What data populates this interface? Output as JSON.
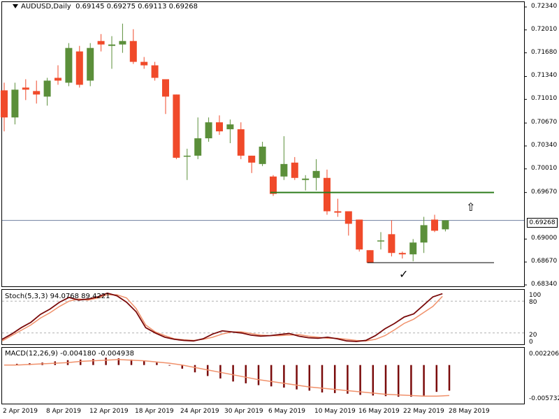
{
  "header": {
    "symbol": "AUDUSD,Daily",
    "ohlc": "0.69145 0.69275 0.69113 0.69268"
  },
  "stoch_label": "Stoch(5,3,3) 94.0768 89.4221",
  "macd_label": "MACD(12,26,9) -0.004180 -0.004938",
  "price_axis_ticks": [
    "0.72340",
    "0.72010",
    "0.71680",
    "0.71340",
    "0.71010",
    "0.70670",
    "0.70340",
    "0.70010",
    "0.69670",
    "0.69268",
    "0.69000",
    "0.68670",
    "0.68340"
  ],
  "current_price_label": "0.69268",
  "stoch_axis_ticks": [
    "100",
    "80",
    "20",
    "0"
  ],
  "macd_axis_ticks": [
    "0.002206",
    "-0.005732"
  ],
  "date_ticks": [
    "2 Apr 2019",
    "8 Apr 2019",
    "12 Apr 2019",
    "18 Apr 2019",
    "24 Apr 2019",
    "30 Apr 2019",
    "6 May 2019",
    "10 May 2019",
    "16 May 2019",
    "22 May 2019",
    "28 May 2019"
  ],
  "annotations": {
    "up_arrow": "⇧",
    "checkmark": "✓"
  },
  "colors": {
    "bull": "#5b8f3a",
    "bear": "#f04a2a",
    "stoch_main": "#7a0a0a",
    "stoch_signal": "#f0906a",
    "macd_hist": "#7a0a0a",
    "macd_signal": "#f0906a",
    "resistance": "#2e7d1e",
    "support": "#000000",
    "current_price_line": "#6f7f9f"
  },
  "chart_data": {
    "type": "candlestick",
    "ylim": [
      0.6834,
      0.724
    ],
    "candles": [
      {
        "o": 0.7114,
        "h": 0.7125,
        "l": 0.7055,
        "c": 0.7075
      },
      {
        "o": 0.7075,
        "h": 0.7125,
        "l": 0.7065,
        "c": 0.7115
      },
      {
        "o": 0.7118,
        "h": 0.713,
        "l": 0.71,
        "c": 0.7115
      },
      {
        "o": 0.7113,
        "h": 0.7128,
        "l": 0.7095,
        "c": 0.7108
      },
      {
        "o": 0.7105,
        "h": 0.7132,
        "l": 0.7092,
        "c": 0.7128
      },
      {
        "o": 0.7132,
        "h": 0.715,
        "l": 0.7122,
        "c": 0.7128
      },
      {
        "o": 0.7125,
        "h": 0.7182,
        "l": 0.712,
        "c": 0.7175
      },
      {
        "o": 0.717,
        "h": 0.7178,
        "l": 0.7118,
        "c": 0.7122
      },
      {
        "o": 0.7128,
        "h": 0.7182,
        "l": 0.712,
        "c": 0.7175
      },
      {
        "o": 0.7185,
        "h": 0.7195,
        "l": 0.717,
        "c": 0.718
      },
      {
        "o": 0.7178,
        "h": 0.7192,
        "l": 0.7145,
        "c": 0.718
      },
      {
        "o": 0.718,
        "h": 0.721,
        "l": 0.7168,
        "c": 0.7185
      },
      {
        "o": 0.7185,
        "h": 0.7202,
        "l": 0.7152,
        "c": 0.7155
      },
      {
        "o": 0.7155,
        "h": 0.7162,
        "l": 0.7145,
        "c": 0.715
      },
      {
        "o": 0.715,
        "h": 0.7155,
        "l": 0.7128,
        "c": 0.7132
      },
      {
        "o": 0.713,
        "h": 0.713,
        "l": 0.708,
        "c": 0.7105
      },
      {
        "o": 0.7108,
        "h": 0.7108,
        "l": 0.7015,
        "c": 0.7017
      },
      {
        "o": 0.702,
        "h": 0.703,
        "l": 0.6985,
        "c": 0.702
      },
      {
        "o": 0.702,
        "h": 0.7075,
        "l": 0.7015,
        "c": 0.7045
      },
      {
        "o": 0.7045,
        "h": 0.7075,
        "l": 0.704,
        "c": 0.7068
      },
      {
        "o": 0.7068,
        "h": 0.7078,
        "l": 0.705,
        "c": 0.7055
      },
      {
        "o": 0.7058,
        "h": 0.7072,
        "l": 0.7038,
        "c": 0.7065
      },
      {
        "o": 0.7058,
        "h": 0.7068,
        "l": 0.7015,
        "c": 0.702
      },
      {
        "o": 0.702,
        "h": 0.702,
        "l": 0.6995,
        "c": 0.701
      },
      {
        "o": 0.7008,
        "h": 0.704,
        "l": 0.7005,
        "c": 0.7033
      },
      {
        "o": 0.699,
        "h": 0.6992,
        "l": 0.6962,
        "c": 0.6965
      },
      {
        "o": 0.699,
        "h": 0.7048,
        "l": 0.6985,
        "c": 0.7008
      },
      {
        "o": 0.701,
        "h": 0.7018,
        "l": 0.6985,
        "c": 0.6988
      },
      {
        "o": 0.6985,
        "h": 0.6992,
        "l": 0.697,
        "c": 0.6987
      },
      {
        "o": 0.6988,
        "h": 0.7015,
        "l": 0.697,
        "c": 0.6998
      },
      {
        "o": 0.6988,
        "h": 0.7,
        "l": 0.6935,
        "c": 0.694
      },
      {
        "o": 0.694,
        "h": 0.6958,
        "l": 0.6932,
        "c": 0.6938
      },
      {
        "o": 0.694,
        "h": 0.694,
        "l": 0.6905,
        "c": 0.6922
      },
      {
        "o": 0.6928,
        "h": 0.6928,
        "l": 0.6882,
        "c": 0.6885
      },
      {
        "o": 0.6884,
        "h": 0.6884,
        "l": 0.6866,
        "c": 0.6866
      },
      {
        "o": 0.6898,
        "h": 0.691,
        "l": 0.6885,
        "c": 0.6898
      },
      {
        "o": 0.6907,
        "h": 0.6927,
        "l": 0.6875,
        "c": 0.688
      },
      {
        "o": 0.688,
        "h": 0.6882,
        "l": 0.6872,
        "c": 0.6878
      },
      {
        "o": 0.6878,
        "h": 0.69,
        "l": 0.6868,
        "c": 0.6895
      },
      {
        "o": 0.6895,
        "h": 0.6932,
        "l": 0.688,
        "c": 0.692
      },
      {
        "o": 0.6928,
        "h": 0.6935,
        "l": 0.691,
        "c": 0.6912
      },
      {
        "o": 0.6914,
        "h": 0.6927,
        "l": 0.6911,
        "c": 0.6927
      }
    ],
    "resistance_level": 0.6967,
    "support_level": 0.6866,
    "current_price": 0.69268,
    "stoch_ylim": [
      0,
      100
    ],
    "stoch_levels": [
      80,
      20
    ],
    "stoch_main": [
      8,
      18,
      30,
      40,
      55,
      65,
      78,
      87,
      82,
      84,
      88,
      95,
      90,
      78,
      60,
      30,
      20,
      12,
      8,
      6,
      5,
      9,
      18,
      24,
      22,
      20,
      16,
      14,
      15,
      17,
      19,
      14,
      11,
      10,
      12,
      9,
      5,
      4,
      6,
      15,
      28,
      38,
      50,
      56,
      72,
      88,
      94
    ],
    "stoch_signal": [
      5,
      15,
      25,
      35,
      48,
      58,
      70,
      80,
      84,
      82,
      86,
      92,
      92,
      86,
      66,
      35,
      22,
      15,
      9,
      7,
      6,
      8,
      12,
      18,
      22,
      22,
      19,
      16,
      15,
      15,
      16,
      17,
      14,
      12,
      10,
      10,
      8,
      6,
      5,
      8,
      15,
      26,
      38,
      46,
      58,
      70,
      89
    ],
    "macd_ylim": [
      -0.0061,
      0.0026
    ],
    "macd_hist": [
      0.0,
      0.0002,
      0.0003,
      0.0004,
      0.0006,
      0.0008,
      0.0009,
      0.001,
      0.0012,
      0.0011,
      0.0009,
      0.0007,
      0.0004,
      -0.0001,
      -0.0006,
      -0.0012,
      -0.0018,
      -0.0022,
      -0.0027,
      -0.003,
      -0.0033,
      -0.0035,
      -0.0037,
      -0.004,
      -0.0042,
      -0.0045,
      -0.0046,
      -0.0047,
      -0.0049,
      -0.005,
      -0.0051,
      -0.0052,
      -0.0052,
      -0.005,
      -0.0044,
      -0.0042
    ],
    "macd_signal": [
      0.0,
      0.0,
      0.0001,
      0.0002,
      0.0003,
      0.0004,
      0.0006,
      0.0007,
      0.0008,
      0.0009,
      0.0008,
      0.0007,
      0.0005,
      0.0003,
      0.0,
      -0.0004,
      -0.0008,
      -0.0012,
      -0.0016,
      -0.002,
      -0.0024,
      -0.0027,
      -0.003,
      -0.0033,
      -0.0036,
      -0.0038,
      -0.004,
      -0.0042,
      -0.0044,
      -0.0046,
      -0.0048,
      -0.0049,
      -0.005,
      -0.0051,
      -0.0051,
      -0.005
    ]
  }
}
